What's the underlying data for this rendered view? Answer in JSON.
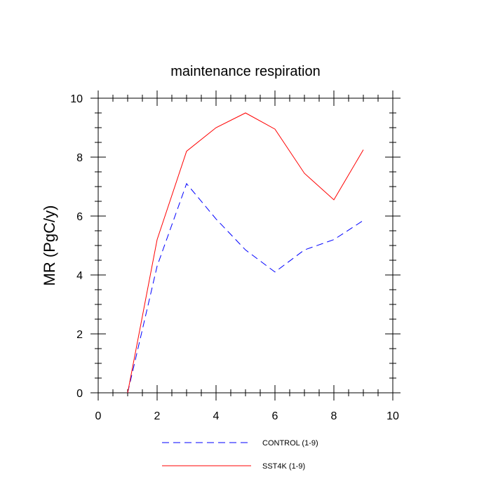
{
  "chart_data": {
    "type": "line",
    "title": "maintenance respiration",
    "xlabel": "",
    "ylabel": "MR  (PgC/y)",
    "xlim": [
      0,
      10
    ],
    "ylim": [
      0,
      10
    ],
    "xticks": [
      0,
      2,
      4,
      6,
      8,
      10
    ],
    "yticks": [
      0,
      2,
      4,
      6,
      8,
      10
    ],
    "x_tick_labels": [
      "0",
      "2",
      "4",
      "6",
      "8",
      "10"
    ],
    "y_tick_labels": [
      "0",
      "2",
      "4",
      "6",
      "8",
      "10"
    ],
    "x": [
      1,
      2,
      3,
      4,
      5,
      6,
      7,
      8,
      9
    ],
    "series": [
      {
        "name": "CONTROL (1-9)",
        "color": "#0000ff",
        "dash": "dashed",
        "values": [
          0.0,
          4.3,
          7.1,
          5.9,
          4.85,
          4.1,
          4.85,
          5.2,
          5.85
        ]
      },
      {
        "name": "SST4K (1-9)",
        "color": "#ff0000",
        "dash": "solid",
        "values": [
          0.0,
          5.2,
          8.2,
          9.0,
          9.5,
          8.95,
          7.45,
          6.55,
          8.25
        ]
      }
    ],
    "grid": false,
    "legend_position": "bottom"
  }
}
